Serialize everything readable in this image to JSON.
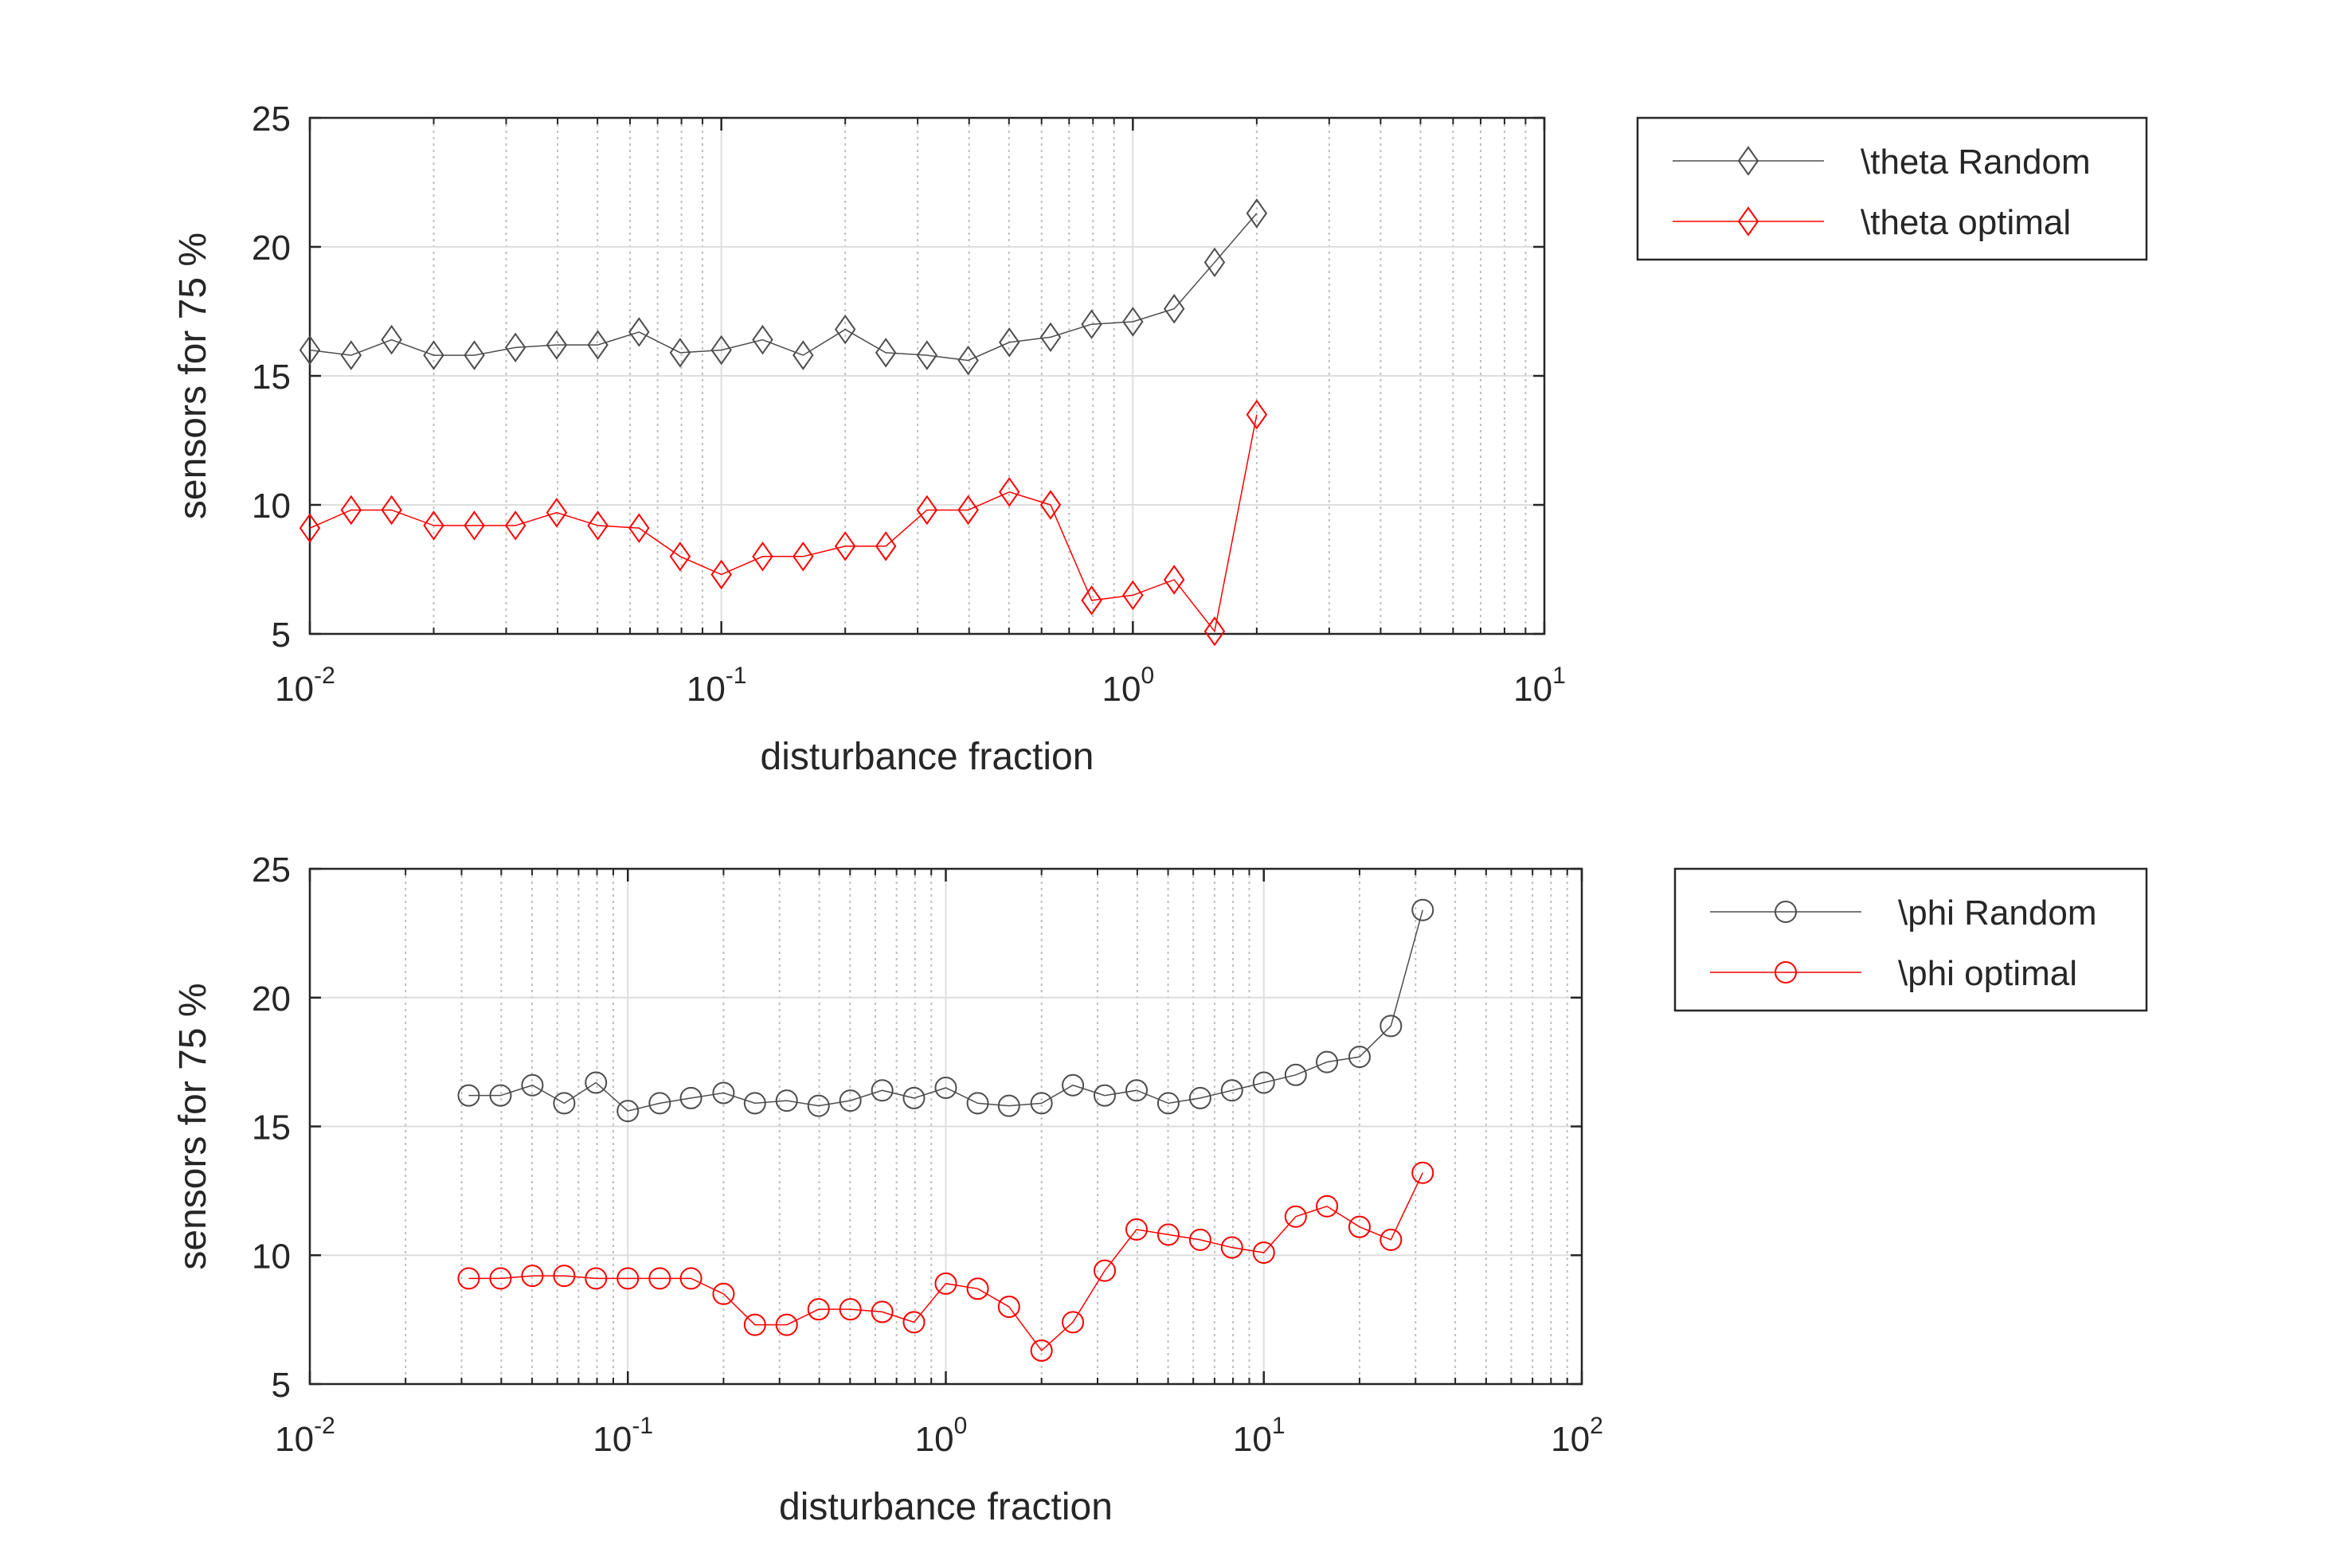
{
  "chart_data": [
    {
      "type": "line",
      "title": "",
      "xlabel": "disturbance fraction",
      "ylabel": "sensors for 75 %",
      "xscale": "log",
      "xlim": [
        0.01,
        10
      ],
      "ylim": [
        5,
        25
      ],
      "xticks": [
        {
          "base": "10",
          "exp": "-2",
          "value": 0.01
        },
        {
          "base": "10",
          "exp": "-1",
          "value": 0.1
        },
        {
          "base": "10",
          "exp": "0",
          "value": 1
        },
        {
          "base": "10",
          "exp": "1",
          "value": 10
        }
      ],
      "yticks": [
        "5",
        "10",
        "15",
        "20",
        "25"
      ],
      "grid": true,
      "legend_position": "outside-right",
      "series": [
        {
          "name": "\\theta Random",
          "color": "#4d4d4d",
          "marker": "diamond",
          "x": [
            0.01,
            0.0126,
            0.0158,
            0.02,
            0.0251,
            0.0316,
            0.0398,
            0.0501,
            0.0631,
            0.0794,
            0.1,
            0.126,
            0.158,
            0.2,
            0.251,
            0.316,
            0.398,
            0.501,
            0.631,
            0.794,
            1,
            1.26,
            1.58,
            2
          ],
          "values": [
            16.0,
            15.8,
            16.4,
            15.8,
            15.8,
            16.1,
            16.2,
            16.2,
            16.7,
            15.9,
            16.0,
            16.4,
            15.8,
            16.8,
            15.9,
            15.8,
            15.6,
            16.3,
            16.5,
            17.0,
            17.1,
            17.6,
            19.4,
            21.3
          ]
        },
        {
          "name": "\\theta optimal",
          "color": "#ff0000",
          "marker": "diamond",
          "x": [
            0.01,
            0.0126,
            0.0158,
            0.02,
            0.0251,
            0.0316,
            0.0398,
            0.0501,
            0.0631,
            0.0794,
            0.1,
            0.126,
            0.158,
            0.2,
            0.251,
            0.316,
            0.398,
            0.501,
            0.631,
            0.794,
            1,
            1.26,
            1.58,
            2
          ],
          "values": [
            9.1,
            9.8,
            9.8,
            9.2,
            9.2,
            9.2,
            9.7,
            9.2,
            9.1,
            8.0,
            7.3,
            8.0,
            8.0,
            8.4,
            8.4,
            9.8,
            9.8,
            10.5,
            10.0,
            6.3,
            6.5,
            7.1,
            5.1,
            13.5
          ]
        }
      ]
    },
    {
      "type": "line",
      "title": "",
      "xlabel": "disturbance fraction",
      "ylabel": "sensors for 75 %",
      "xscale": "log",
      "xlim": [
        0.01,
        100
      ],
      "ylim": [
        5,
        25
      ],
      "xticks": [
        {
          "base": "10",
          "exp": "-2",
          "value": 0.01
        },
        {
          "base": "10",
          "exp": "-1",
          "value": 0.1
        },
        {
          "base": "10",
          "exp": "0",
          "value": 1
        },
        {
          "base": "10",
          "exp": "1",
          "value": 10
        },
        {
          "base": "10",
          "exp": "2",
          "value": 100
        }
      ],
      "yticks": [
        "5",
        "10",
        "15",
        "20",
        "25"
      ],
      "grid": true,
      "legend_position": "outside-right",
      "series": [
        {
          "name": "\\phi Random",
          "color": "#4d4d4d",
          "marker": "circle",
          "x": [
            0.0316,
            0.0398,
            0.0501,
            0.0631,
            0.0794,
            0.1,
            0.126,
            0.158,
            0.2,
            0.251,
            0.316,
            0.398,
            0.501,
            0.631,
            0.794,
            1,
            1.26,
            1.58,
            2,
            2.51,
            3.16,
            3.98,
            5.01,
            6.31,
            7.94,
            10,
            12.6,
            15.8,
            20,
            25.1,
            31.6
          ],
          "values": [
            16.2,
            16.2,
            16.6,
            15.9,
            16.7,
            15.6,
            15.9,
            16.1,
            16.3,
            15.9,
            16.0,
            15.8,
            16.0,
            16.4,
            16.1,
            16.5,
            15.9,
            15.8,
            15.9,
            16.6,
            16.2,
            16.4,
            15.9,
            16.1,
            16.4,
            16.7,
            17.0,
            17.5,
            17.7,
            18.9,
            23.4
          ]
        },
        {
          "name": "\\phi optimal",
          "color": "#ff0000",
          "marker": "circle",
          "x": [
            0.0316,
            0.0398,
            0.0501,
            0.0631,
            0.0794,
            0.1,
            0.126,
            0.158,
            0.2,
            0.251,
            0.316,
            0.398,
            0.501,
            0.631,
            0.794,
            1,
            1.26,
            1.58,
            2,
            2.51,
            3.16,
            3.98,
            5.01,
            6.31,
            7.94,
            10,
            12.6,
            15.8,
            20,
            25.1,
            31.6
          ],
          "values": [
            9.1,
            9.1,
            9.2,
            9.2,
            9.1,
            9.1,
            9.1,
            9.1,
            8.5,
            7.3,
            7.3,
            7.9,
            7.9,
            7.8,
            7.4,
            8.9,
            8.7,
            8.0,
            6.3,
            7.4,
            9.4,
            11.0,
            10.8,
            10.6,
            10.3,
            10.1,
            11.5,
            11.9,
            11.1,
            10.6,
            13.2
          ]
        }
      ]
    }
  ]
}
